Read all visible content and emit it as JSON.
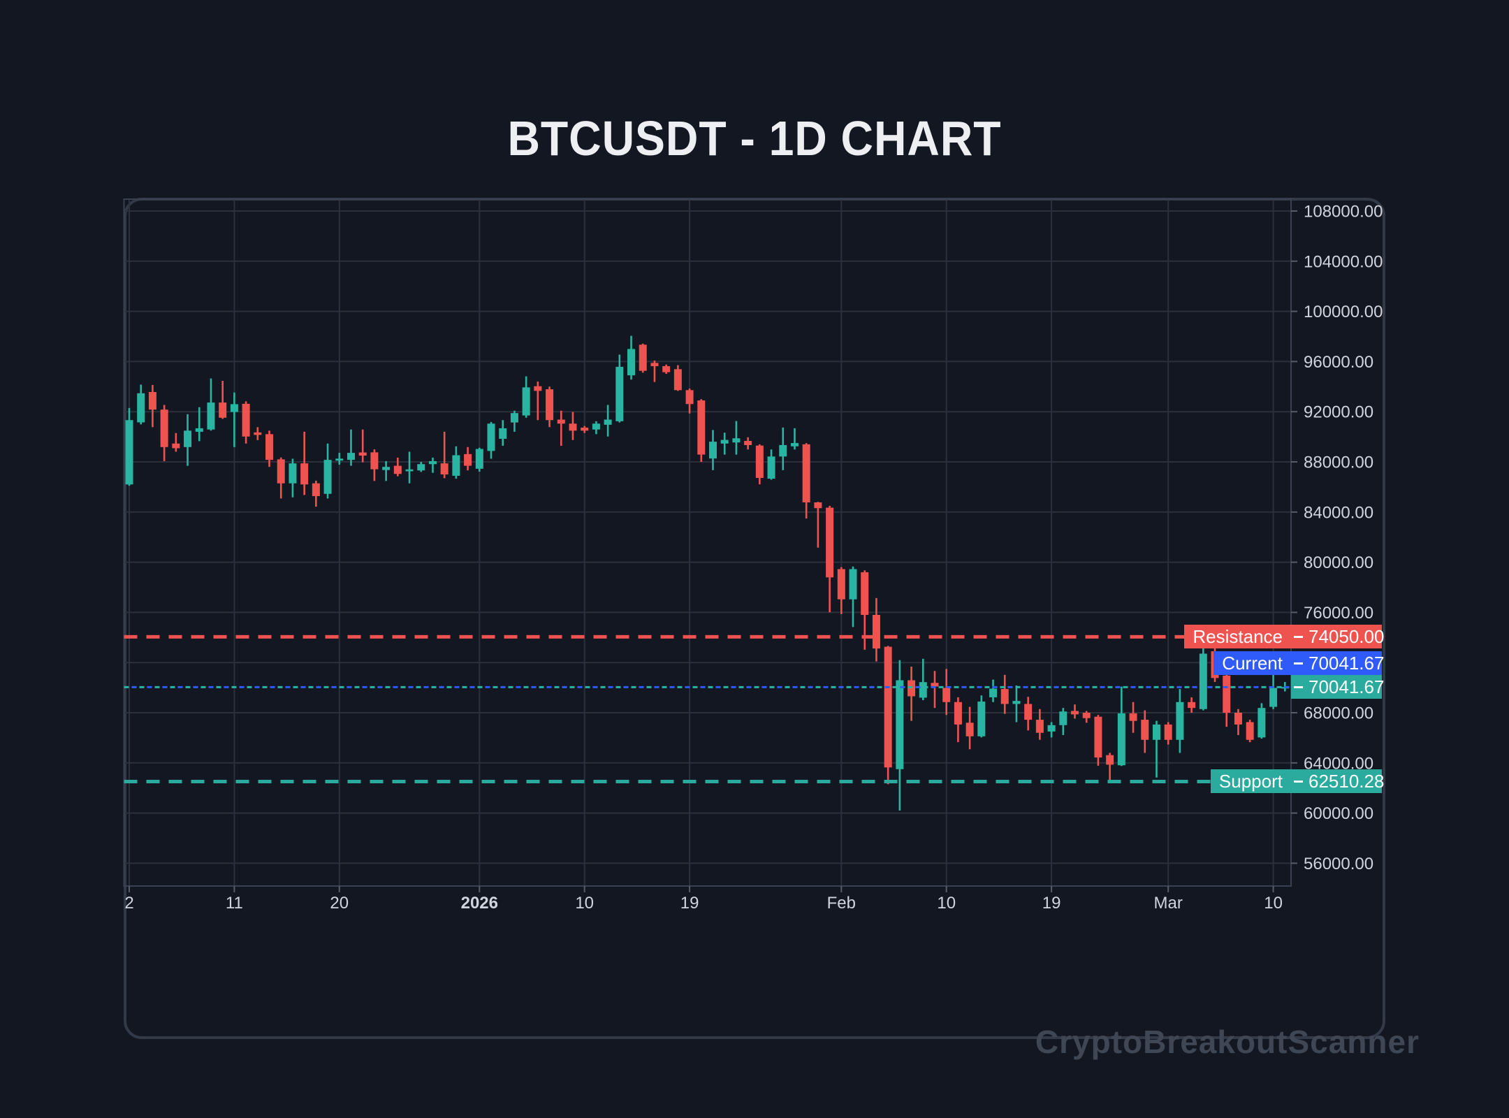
{
  "title": "BTCUSDT - 1D CHART",
  "watermark": "CryptoBreakoutScanner",
  "levels": {
    "resistance": {
      "label": "Resistance",
      "value": "74050.00",
      "price": 74050.0
    },
    "current": {
      "label": "Current",
      "value": "70041.67",
      "price": 70041.67
    },
    "last_price": {
      "value": "70041.67",
      "price": 70041.67
    },
    "support": {
      "label": "Support",
      "value": "62510.28",
      "price": 62510.28
    }
  },
  "colors": {
    "background": "#131722",
    "grid": "#2b303c",
    "spine": "#3a4150",
    "axis_text": "#d1d4dc",
    "tick": "#565d6b",
    "up": "#2ab5a2",
    "down": "#ef5350",
    "badge_teal": "#2aab9d",
    "badge_blue": "#2f5bfa",
    "badge_red": "#ef5350"
  },
  "chart_data": {
    "type": "candlestick",
    "title": "BTCUSDT - 1D CHART",
    "timeframe": "1D",
    "y_ticks": [
      "108000.00",
      "104000.00",
      "100000.00",
      "96000.00",
      "92000.00",
      "88000.00",
      "84000.00",
      "80000.00",
      "76000.00",
      "72000.00",
      "68000.00",
      "64000.00",
      "60000.00",
      "56000.00"
    ],
    "y_range_labeled": [
      56000,
      108000
    ],
    "y_step": 4000,
    "grid": true,
    "x_ticks": [
      {
        "label": "2",
        "day": 0,
        "bold": false
      },
      {
        "label": "11",
        "day": 9,
        "bold": false
      },
      {
        "label": "20",
        "day": 18,
        "bold": false
      },
      {
        "label": "2026",
        "day": 30,
        "bold": true
      },
      {
        "label": "10",
        "day": 39,
        "bold": false
      },
      {
        "label": "19",
        "day": 48,
        "bold": false
      },
      {
        "label": "Feb",
        "day": 61,
        "bold": false
      },
      {
        "label": "10",
        "day": 70,
        "bold": false
      },
      {
        "label": "19",
        "day": 79,
        "bold": false
      },
      {
        "label": "Mar",
        "day": 89,
        "bold": false
      },
      {
        "label": "10",
        "day": 98,
        "bold": false
      }
    ],
    "levels": {
      "resistance": 74050.0,
      "current": 70041.67,
      "support": 62510.28
    },
    "candles_format": [
      "open",
      "high",
      "low",
      "close"
    ],
    "candles": [
      [
        86200,
        92300,
        86100,
        91330
      ],
      [
        91150,
        94160,
        90990,
        93470
      ],
      [
        93570,
        94130,
        90770,
        92170
      ],
      [
        92170,
        92540,
        88060,
        89180
      ],
      [
        89460,
        90300,
        88810,
        89090
      ],
      [
        89180,
        91800,
        87690,
        90490
      ],
      [
        90400,
        92360,
        89650,
        90680
      ],
      [
        90580,
        94650,
        90490,
        92730
      ],
      [
        92730,
        94460,
        91430,
        91520
      ],
      [
        91980,
        93530,
        89180,
        92600
      ],
      [
        92630,
        92830,
        89460,
        90020
      ],
      [
        90350,
        90770,
        89740,
        90150
      ],
      [
        90210,
        90490,
        87600,
        88160
      ],
      [
        88200,
        88350,
        85080,
        86290
      ],
      [
        86290,
        88250,
        85170,
        87880
      ],
      [
        87880,
        90400,
        85360,
        86200
      ],
      [
        86290,
        86500,
        84430,
        85270
      ],
      [
        85450,
        89460,
        85080,
        88160
      ],
      [
        88100,
        88720,
        87780,
        88260
      ],
      [
        88160,
        90580,
        87690,
        88720
      ],
      [
        88750,
        90580,
        87970,
        88500
      ],
      [
        88760,
        89000,
        86480,
        87410
      ],
      [
        87350,
        88060,
        86480,
        87600
      ],
      [
        87690,
        88340,
        86850,
        87040
      ],
      [
        87250,
        88810,
        86290,
        87400
      ],
      [
        87320,
        88000,
        87200,
        87820
      ],
      [
        87820,
        88340,
        87130,
        88060
      ],
      [
        87880,
        90400,
        86700,
        87000
      ],
      [
        86890,
        89240,
        86660,
        88530
      ],
      [
        88620,
        89180,
        87320,
        87690
      ],
      [
        87450,
        89130,
        87220,
        89030
      ],
      [
        88870,
        91180,
        88250,
        91050
      ],
      [
        89840,
        91330,
        89280,
        90680
      ],
      [
        91140,
        92080,
        90400,
        91890
      ],
      [
        91700,
        94820,
        91520,
        93940
      ],
      [
        94030,
        94400,
        91330,
        93660
      ],
      [
        93790,
        94000,
        90770,
        91330
      ],
      [
        91370,
        92080,
        89280,
        91050
      ],
      [
        91050,
        91980,
        89740,
        90490
      ],
      [
        90730,
        90860,
        90300,
        90490
      ],
      [
        90580,
        91240,
        90210,
        91050
      ],
      [
        90960,
        92540,
        90020,
        91370
      ],
      [
        91240,
        96550,
        91140,
        95580
      ],
      [
        94900,
        98050,
        94560,
        97000
      ],
      [
        97340,
        97430,
        95110,
        95260
      ],
      [
        95890,
        96080,
        94370,
        95630
      ],
      [
        95630,
        95760,
        95020,
        95150
      ],
      [
        95390,
        95710,
        93660,
        93720
      ],
      [
        93720,
        93850,
        91860,
        92610
      ],
      [
        92900,
        93000,
        88000,
        88580
      ],
      [
        88270,
        90540,
        87340,
        89610
      ],
      [
        89460,
        90330,
        88580,
        89750
      ],
      [
        89550,
        91260,
        88580,
        89880
      ],
      [
        89670,
        89960,
        88990,
        89340
      ],
      [
        89300,
        89400,
        86210,
        86720
      ],
      [
        86660,
        88990,
        86580,
        88430
      ],
      [
        88430,
        90740,
        87340,
        89340
      ],
      [
        89240,
        90680,
        88990,
        89500
      ],
      [
        89400,
        89500,
        83490,
        84770
      ],
      [
        84770,
        84810,
        81160,
        84310
      ],
      [
        84350,
        84500,
        76010,
        78790
      ],
      [
        79450,
        79610,
        75860,
        77040
      ],
      [
        77040,
        79660,
        74830,
        79450
      ],
      [
        79200,
        79350,
        73020,
        75800
      ],
      [
        75800,
        77140,
        72090,
        73120
      ],
      [
        73260,
        73330,
        62300,
        63640
      ],
      [
        63500,
        72190,
        60200,
        70590
      ],
      [
        70590,
        71680,
        67350,
        69310
      ],
      [
        69200,
        72300,
        69000,
        70440
      ],
      [
        70380,
        71330,
        68380,
        70090
      ],
      [
        69980,
        71490,
        67820,
        68850
      ],
      [
        68850,
        69230,
        65650,
        67060
      ],
      [
        67200,
        68470,
        65090,
        66120
      ],
      [
        66120,
        69380,
        66030,
        68890
      ],
      [
        69230,
        70640,
        68850,
        69920
      ],
      [
        69890,
        71020,
        67910,
        68700
      ],
      [
        68700,
        70170,
        67250,
        68940
      ],
      [
        68700,
        69270,
        66590,
        67440
      ],
      [
        67440,
        68290,
        65840,
        66400
      ],
      [
        66500,
        67250,
        66030,
        67010
      ],
      [
        67010,
        68380,
        66220,
        68100
      ],
      [
        68140,
        68660,
        67530,
        67870
      ],
      [
        68000,
        68140,
        67200,
        67570
      ],
      [
        67680,
        67820,
        63770,
        64430
      ],
      [
        64620,
        64800,
        62450,
        63860
      ],
      [
        63810,
        70080,
        63750,
        67950
      ],
      [
        67950,
        68850,
        66400,
        67350
      ],
      [
        67440,
        68190,
        64800,
        65840
      ],
      [
        65840,
        67350,
        62830,
        67060
      ],
      [
        67060,
        67250,
        65460,
        65840
      ],
      [
        65840,
        69890,
        64800,
        68850
      ],
      [
        68850,
        69230,
        68000,
        68380
      ],
      [
        68290,
        74100,
        68190,
        72710
      ],
      [
        72900,
        73270,
        70450,
        70770
      ],
      [
        70960,
        71110,
        66880,
        68000
      ],
      [
        68000,
        68290,
        66220,
        67060
      ],
      [
        67250,
        67440,
        65650,
        65840
      ],
      [
        66030,
        68760,
        65930,
        68380
      ],
      [
        68470,
        71390,
        68290,
        69980
      ],
      [
        69980,
        70450,
        69700,
        70041.67
      ]
    ]
  }
}
